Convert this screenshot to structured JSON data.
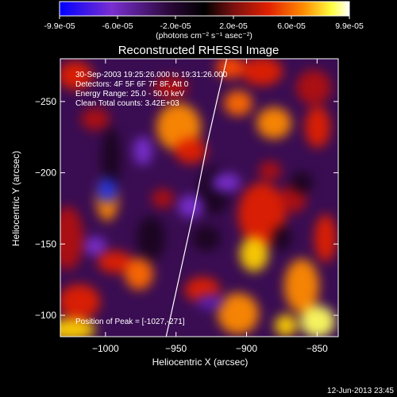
{
  "chart_data": {
    "type": "heatmap",
    "title": "Reconstructed RHESSI Image",
    "colorbar": {
      "tick_labels": [
        "-9.9e-05",
        "-6.0e-05",
        "-2.0e-05",
        "2.0e-05",
        "6.0e-05",
        "9.9e-05"
      ],
      "range": [
        -9.9e-05,
        9.9e-05
      ],
      "unit_label": "(photons cm⁻² s⁻¹ asec⁻²)",
      "colormap": [
        "#0000ff",
        "#7a2fd0",
        "#2a0838",
        "#000000",
        "#7a1010",
        "#e02000",
        "#ff8a00",
        "#ffff40",
        "#ffffff"
      ]
    },
    "info_lines": [
      "30-Sep-2003 19:25:26.000 to 19:31:26.000",
      "Detectors: 4F 5F 6F 7F 8F, Att 0",
      "Energy Range: 25.0 - 50.0 keV",
      "Clean     Total counts: 3.42E+03"
    ],
    "peak_label": "Position of Peak = [-1027,-271]",
    "xlabel": "Heliocentric X (arcsec)",
    "ylabel": "Heliocentric Y (arcsec)",
    "x_ticks": [
      "-1000",
      "-950",
      "-900",
      "-850"
    ],
    "y_ticks": [
      "-100",
      "-150",
      "-200",
      "-250"
    ],
    "xlim": [
      -1032,
      -835
    ],
    "ylim": [
      -280,
      -85
    ],
    "limb_curve": [
      [
        -957,
        -85
      ],
      [
        -947,
        -130
      ],
      [
        -937,
        -175
      ],
      [
        -928,
        -220
      ],
      [
        -920,
        -255
      ],
      [
        -914,
        -280
      ]
    ],
    "footer": "12-Jun-2013 23:45"
  }
}
